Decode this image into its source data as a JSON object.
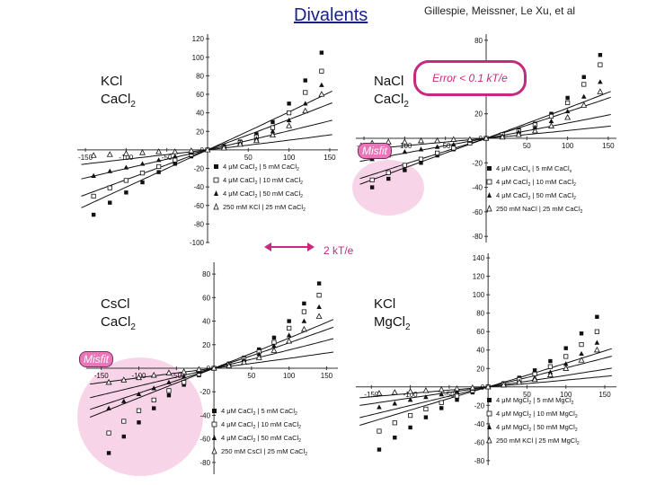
{
  "header": {
    "title": "Divalents",
    "authors": "Gillespie, Meissner, Le Xu, et al"
  },
  "annotations": {
    "error": "Error < 0.1 kT/e",
    "misfit_1": "Misfit",
    "misfit_2": "Misfit",
    "scale": "2 kT/e"
  },
  "colors": {
    "accent": "#c8287e",
    "misfit_fill": "#e876b8",
    "title": "#1a1f8c"
  },
  "panels": [
    {
      "salt": {
        "line1": "KCl",
        "line2": "CaCl",
        "line2_sub": "2"
      },
      "x_ticks": [
        "-150",
        "-100",
        "-50",
        "0",
        "50",
        "100",
        "150"
      ],
      "y_ticks": [
        "120",
        "100",
        "80",
        "60",
        "40",
        "20",
        "0",
        "-20",
        "-40",
        "-60",
        "-80",
        "-100"
      ],
      "legend": [
        {
          "marker": "filled-square",
          "pre": "4 μM CaCl",
          "pre_sub": "2",
          "post": " | 5 mM CaCl",
          "post_sub": "2"
        },
        {
          "marker": "open-square",
          "pre": "4 μM CaCl",
          "pre_sub": "2",
          "post": " | 10 mM CaCl",
          "post_sub": "2"
        },
        {
          "marker": "filled-triangle",
          "pre": "4 μM CaCl",
          "pre_sub": "2",
          "post": " | 50 mM CaCl",
          "post_sub": "2"
        },
        {
          "marker": "open-triangle",
          "pre": "250 mM KCl | 25 mM CaCl",
          "pre_sub": "2",
          "post": "",
          "post_sub": ""
        }
      ]
    },
    {
      "salt": {
        "line1": "NaCl",
        "line2": "CaCl",
        "line2_sub": "2"
      },
      "x_ticks": [
        "-150",
        "-100",
        "-50",
        "0",
        "50",
        "100",
        "150"
      ],
      "y_ticks": [
        "80",
        "60",
        "40",
        "20",
        "0",
        "-20",
        "-40",
        "-60",
        "-80"
      ],
      "legend": [
        {
          "marker": "filled-square",
          "pre": "4 μM CaCl",
          "pre_sub": "x",
          "post": " | 5 mM CaCl",
          "post_sub": "x"
        },
        {
          "marker": "open-square",
          "pre": "4 μM CaCl",
          "pre_sub": "2",
          "post": " | 10 mM CaCl",
          "post_sub": "2"
        },
        {
          "marker": "filled-triangle",
          "pre": "4 μM CaCl",
          "pre_sub": "2",
          "post": " | 50 mM CaCl",
          "post_sub": "2"
        },
        {
          "marker": "open-triangle",
          "pre": "250 mM NaCl | 25 mM CaCl",
          "pre_sub": "2",
          "post": "",
          "post_sub": ""
        }
      ]
    },
    {
      "salt": {
        "line1": "CsCl",
        "line2": "CaCl",
        "line2_sub": "2"
      },
      "x_ticks": [
        "-150",
        "-100",
        "-50",
        "0",
        "50",
        "100",
        "150"
      ],
      "y_ticks": [
        "80",
        "60",
        "40",
        "20",
        "0",
        "-20",
        "-40",
        "-60",
        "-80"
      ],
      "legend": [
        {
          "marker": "filled-square",
          "pre": "4 μM CaCl",
          "pre_sub": "2",
          "post": " | 5 mM CaCl",
          "post_sub": "2"
        },
        {
          "marker": "open-square",
          "pre": "4 μM CaCl",
          "pre_sub": "2",
          "post": " | 10 mM CaCl",
          "post_sub": "2"
        },
        {
          "marker": "filled-triangle",
          "pre": "4 μM CaCl",
          "pre_sub": "2",
          "post": " | 50 mM CaCl",
          "post_sub": "2"
        },
        {
          "marker": "open-triangle",
          "pre": "250 mM CsCl | 25 mM CaCl",
          "pre_sub": "2",
          "post": "",
          "post_sub": ""
        }
      ]
    },
    {
      "salt": {
        "line1": "KCl",
        "line2": "MgCl",
        "line2_sub": "2"
      },
      "x_ticks": [
        "-150",
        "-100",
        "-50",
        "0",
        "50",
        "100",
        "150"
      ],
      "y_ticks": [
        "140",
        "120",
        "100",
        "80",
        "60",
        "40",
        "20",
        "0",
        "-20",
        "-40",
        "-60",
        "-80"
      ],
      "legend": [
        {
          "marker": "filled-square",
          "pre": "4 μM MgCl",
          "pre_sub": "2",
          "post": " | 5 mM MgCl",
          "post_sub": "2"
        },
        {
          "marker": "open-square",
          "pre": "4 μM MgCl",
          "pre_sub": "2",
          "post": " | 10 mM MgCl",
          "post_sub": "2"
        },
        {
          "marker": "filled-triangle",
          "pre": "4 μM MgCl",
          "pre_sub": "2",
          "post": " | 50 mM MgCl",
          "post_sub": "2"
        },
        {
          "marker": "open-triangle",
          "pre": "250 mM KCl | 25 mM MgCl",
          "pre_sub": "2",
          "post": "",
          "post_sub": ""
        }
      ]
    }
  ],
  "chart_data": [
    {
      "type": "scatter",
      "xlim": [
        -160,
        160
      ],
      "ylim": [
        -100,
        125
      ],
      "series": [
        {
          "marker": "filled-square",
          "x": [
            -140,
            -120,
            -100,
            -80,
            -60,
            -40,
            -20,
            0,
            20,
            40,
            60,
            80,
            100,
            120,
            140
          ],
          "y": [
            -70,
            -57,
            -46,
            -35,
            -24,
            -15,
            -7,
            0,
            4,
            9,
            17,
            30,
            50,
            75,
            105
          ],
          "fit": [
            -0.014,
            0.4,
            0.0001
          ]
        },
        {
          "marker": "open-square",
          "x": [
            -140,
            -120,
            -100,
            -80,
            -60,
            -40,
            -20,
            0,
            20,
            40,
            60,
            80,
            100,
            120,
            140
          ],
          "y": [
            -50,
            -41,
            -33,
            -25,
            -18,
            -11,
            -5,
            0,
            3,
            8,
            14,
            24,
            40,
            62,
            85
          ],
          "fit": [
            0,
            0.32,
            8e-05
          ]
        },
        {
          "marker": "filled-triangle",
          "x": [
            -140,
            -120,
            -100,
            -80,
            -60,
            -40,
            -20,
            0,
            20,
            40,
            60,
            80,
            100,
            120,
            140
          ],
          "y": [
            -28,
            -23,
            -19,
            -15,
            -11,
            -7,
            -3,
            0,
            3,
            7,
            12,
            20,
            32,
            50,
            70
          ],
          "fit": [
            0,
            0.2,
            6e-05
          ]
        },
        {
          "marker": "open-triangle",
          "x": [
            -140,
            -120,
            -100,
            -80,
            -60,
            -40,
            -20,
            0,
            20,
            40,
            60,
            80,
            100,
            120,
            140
          ],
          "y": [
            -6,
            -5,
            -4,
            -3,
            -2,
            -2,
            -1,
            0,
            2,
            6,
            10,
            16,
            26,
            42,
            60
          ],
          "fit": [
            0,
            0.1,
            5e-05
          ]
        }
      ]
    },
    {
      "type": "scatter",
      "xlim": [
        -160,
        160
      ],
      "ylim": [
        -85,
        85
      ],
      "series": [
        {
          "marker": "filled-square",
          "x": [
            -140,
            -120,
            -100,
            -80,
            -60,
            -40,
            -20,
            0,
            20,
            40,
            60,
            80,
            100,
            120,
            140
          ],
          "y": [
            -40,
            -33,
            -26,
            -20,
            -14,
            -9,
            -4,
            0,
            3,
            7,
            12,
            20,
            33,
            50,
            68
          ],
          "fit": [
            0,
            0.24,
            6.5e-05
          ]
        },
        {
          "marker": "open-square",
          "x": [
            -140,
            -120,
            -100,
            -80,
            -60,
            -40,
            -20,
            0,
            20,
            40,
            60,
            80,
            100,
            120,
            140
          ],
          "y": [
            -34,
            -28,
            -22,
            -17,
            -12,
            -8,
            -4,
            0,
            3,
            6,
            11,
            18,
            29,
            44,
            60
          ],
          "fit": [
            0,
            0.21,
            5.8e-05
          ]
        },
        {
          "marker": "filled-triangle",
          "x": [
            -140,
            -120,
            -100,
            -80,
            -60,
            -40,
            -20,
            0,
            20,
            40,
            60,
            80,
            100,
            120,
            140
          ],
          "y": [
            -17,
            -14,
            -11,
            -9,
            -7,
            -5,
            -2,
            0,
            2,
            5,
            9,
            14,
            22,
            34,
            46
          ],
          "fit": [
            0,
            0.12,
            4.5e-05
          ]
        },
        {
          "marker": "open-triangle",
          "x": [
            -140,
            -120,
            -100,
            -80,
            -60,
            -40,
            -20,
            0,
            20,
            40,
            60,
            80,
            100,
            120,
            140
          ],
          "y": [
            -4,
            -3,
            -3,
            -2,
            -2,
            -1,
            -1,
            0,
            1,
            3,
            6,
            10,
            17,
            27,
            38
          ],
          "fit": [
            0,
            0.06,
            3.5e-05
          ]
        }
      ]
    },
    {
      "type": "scatter",
      "xlim": [
        -170,
        165
      ],
      "ylim": [
        -90,
        90
      ],
      "series": [
        {
          "marker": "filled-square",
          "x": [
            -140,
            -120,
            -100,
            -80,
            -60,
            -40,
            -20,
            0,
            20,
            40,
            60,
            80,
            100,
            120,
            140
          ],
          "y": [
            -72,
            -58,
            -46,
            -34,
            -23,
            -14,
            -6,
            0,
            4,
            9,
            16,
            26,
            40,
            55,
            72
          ],
          "fit": [
            0,
            0.25,
            6.5e-05
          ]
        },
        {
          "marker": "open-square",
          "x": [
            -140,
            -120,
            -100,
            -80,
            -60,
            -40,
            -20,
            0,
            20,
            40,
            60,
            80,
            100,
            120,
            140
          ],
          "y": [
            -55,
            -45,
            -36,
            -27,
            -19,
            -12,
            -5,
            0,
            3,
            8,
            14,
            22,
            34,
            48,
            62
          ],
          "fit": [
            0,
            0.21,
            5.8e-05
          ]
        },
        {
          "marker": "filled-triangle",
          "x": [
            -140,
            -120,
            -100,
            -80,
            -60,
            -40,
            -20,
            0,
            20,
            40,
            60,
            80,
            100,
            120,
            140
          ],
          "y": [
            -34,
            -28,
            -22,
            -17,
            -12,
            -7,
            -3,
            0,
            3,
            7,
            12,
            19,
            28,
            40,
            52
          ],
          "fit": [
            0,
            0.15,
            5e-05
          ]
        },
        {
          "marker": "open-triangle",
          "x": [
            -140,
            -120,
            -100,
            -80,
            -60,
            -40,
            -20,
            0,
            20,
            40,
            60,
            80,
            100,
            120,
            140
          ],
          "y": [
            -12,
            -10,
            -8,
            -6,
            -4,
            -3,
            -1,
            0,
            2,
            5,
            9,
            15,
            23,
            33,
            44
          ],
          "fit": [
            0,
            0.08,
            4e-05
          ]
        }
      ]
    },
    {
      "type": "scatter",
      "xlim": [
        -170,
        165
      ],
      "ylim": [
        -85,
        145
      ],
      "series": [
        {
          "marker": "filled-square",
          "x": [
            -140,
            -120,
            -100,
            -80,
            -60,
            -40,
            -20,
            0,
            20,
            40,
            60,
            80,
            100,
            120,
            140
          ],
          "y": [
            -68,
            -55,
            -44,
            -33,
            -23,
            -14,
            -6,
            0,
            4,
            10,
            18,
            28,
            42,
            58,
            76
          ],
          "fit": [
            0,
            0.25,
            7e-05
          ]
        },
        {
          "marker": "open-square",
          "x": [
            -140,
            -120,
            -100,
            -80,
            -60,
            -40,
            -20,
            0,
            20,
            40,
            60,
            80,
            100,
            120,
            140
          ],
          "y": [
            -48,
            -39,
            -31,
            -24,
            -17,
            -10,
            -4,
            0,
            3,
            8,
            14,
            22,
            33,
            46,
            60
          ],
          "fit": [
            0,
            0.2,
            6e-05
          ]
        },
        {
          "marker": "filled-triangle",
          "x": [
            -140,
            -120,
            -100,
            -80,
            -60,
            -40,
            -20,
            0,
            20,
            40,
            60,
            80,
            100,
            120,
            140
          ],
          "y": [
            -22,
            -18,
            -14,
            -11,
            -8,
            -5,
            -2,
            0,
            2,
            6,
            10,
            16,
            25,
            36,
            48
          ],
          "fit": [
            0,
            0.12,
            5e-05
          ]
        },
        {
          "marker": "open-triangle",
          "x": [
            -140,
            -120,
            -100,
            -80,
            -60,
            -40,
            -20,
            0,
            20,
            40,
            60,
            80,
            100,
            120,
            140
          ],
          "y": [
            -7,
            -6,
            -5,
            -4,
            -3,
            -2,
            -1,
            0,
            2,
            5,
            8,
            13,
            20,
            29,
            40
          ],
          "fit": [
            0,
            0.07,
            4e-05
          ]
        }
      ]
    }
  ]
}
